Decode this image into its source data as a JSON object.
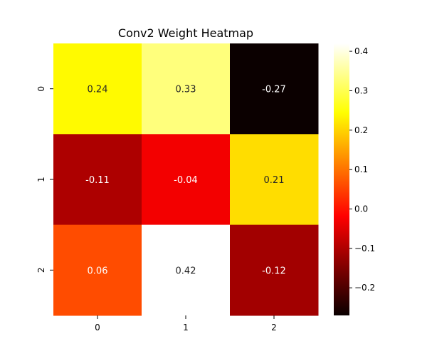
{
  "chart_data": {
    "type": "heatmap",
    "title": "Conv2 Weight Heatmap",
    "xlabel": "",
    "ylabel": "",
    "x_categories": [
      "0",
      "1",
      "2"
    ],
    "y_categories": [
      "0",
      "1",
      "2"
    ],
    "values": [
      [
        0.24,
        0.33,
        -0.27
      ],
      [
        -0.11,
        -0.04,
        0.21
      ],
      [
        0.06,
        0.42,
        -0.12
      ]
    ],
    "cell_labels": [
      [
        "0.24",
        "0.33",
        "-0.27"
      ],
      [
        "-0.11",
        "-0.04",
        "0.21"
      ],
      [
        "0.06",
        "0.42",
        "-0.12"
      ]
    ],
    "colormap": "hot",
    "color_range": [
      -0.27,
      0.42
    ],
    "colorbar": {
      "ticks": [
        -0.2,
        -0.1,
        0.0,
        0.1,
        0.2,
        0.3,
        0.4
      ],
      "tick_labels": [
        "−0.2",
        "−0.1",
        "0.0",
        "0.1",
        "0.2",
        "0.3",
        "0.4"
      ],
      "placement": "right"
    },
    "grid": false
  }
}
